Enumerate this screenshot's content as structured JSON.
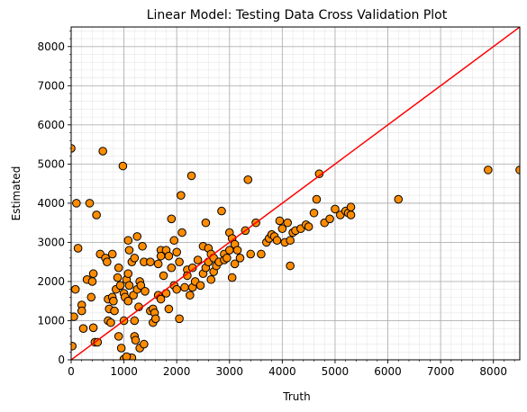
{
  "chart_data": {
    "type": "scatter",
    "title": "Linear Model: Testing Data Cross Validation Plot",
    "xlabel": "Truth",
    "ylabel": "Estimated",
    "xlim": [
      0,
      8500
    ],
    "ylim": [
      0,
      8500
    ],
    "x_ticks": [
      0,
      1000,
      2000,
      3000,
      4000,
      5000,
      6000,
      7000,
      8000
    ],
    "y_ticks": [
      0,
      1000,
      2000,
      3000,
      4000,
      5000,
      6000,
      7000,
      8000
    ],
    "x_tick_labels": [
      "0",
      "1000",
      "2000",
      "3000",
      "4000",
      "5000",
      "6000",
      "7000",
      "8000"
    ],
    "y_tick_labels": [
      "0",
      "1000",
      "2000",
      "3000",
      "4000",
      "5000",
      "6000",
      "7000",
      "8000"
    ],
    "grid": true,
    "minor_grid": true,
    "marker_color": "#ff8c00",
    "marker_edge_color": "#000000",
    "reference_line": {
      "type": "y=x",
      "color": "#ff0000"
    },
    "points": [
      [
        0,
        5400
      ],
      [
        20,
        350
      ],
      [
        50,
        1100
      ],
      [
        80,
        1800
      ],
      [
        100,
        4000
      ],
      [
        130,
        2850
      ],
      [
        200,
        1400
      ],
      [
        200,
        1250
      ],
      [
        230,
        800
      ],
      [
        300,
        2050
      ],
      [
        350,
        4000
      ],
      [
        380,
        1600
      ],
      [
        400,
        2000
      ],
      [
        420,
        2200
      ],
      [
        420,
        820
      ],
      [
        450,
        450
      ],
      [
        480,
        3700
      ],
      [
        500,
        450
      ],
      [
        550,
        2700
      ],
      [
        600,
        5330
      ],
      [
        650,
        2600
      ],
      [
        680,
        2500
      ],
      [
        700,
        1550
      ],
      [
        700,
        1000
      ],
      [
        720,
        1300
      ],
      [
        750,
        950
      ],
      [
        780,
        2700
      ],
      [
        780,
        1600
      ],
      [
        800,
        1500
      ],
      [
        820,
        1250
      ],
      [
        850,
        1800
      ],
      [
        880,
        2100
      ],
      [
        900,
        2350
      ],
      [
        900,
        600
      ],
      [
        930,
        1900
      ],
      [
        950,
        300
      ],
      [
        980,
        4950
      ],
      [
        1000,
        1700
      ],
      [
        1000,
        1000
      ],
      [
        1020,
        1600
      ],
      [
        1050,
        2050
      ],
      [
        1080,
        2200
      ],
      [
        1080,
        1500
      ],
      [
        1080,
        3050
      ],
      [
        1100,
        2800
      ],
      [
        1100,
        1900
      ],
      [
        1120,
        50
      ],
      [
        1150,
        50
      ],
      [
        1150,
        2500
      ],
      [
        1180,
        1650
      ],
      [
        1200,
        2600
      ],
      [
        1200,
        1000
      ],
      [
        1200,
        600
      ],
      [
        1220,
        500
      ],
      [
        1250,
        3150
      ],
      [
        1250,
        1800
      ],
      [
        1280,
        1350
      ],
      [
        1300,
        2000
      ],
      [
        1300,
        300
      ],
      [
        1320,
        1900
      ],
      [
        1350,
        2900
      ],
      [
        1380,
        400
      ],
      [
        1380,
        2500
      ],
      [
        1400,
        1750
      ],
      [
        1000,
        20
      ],
      [
        1050,
        80
      ],
      [
        1500,
        1250
      ],
      [
        1500,
        2500
      ],
      [
        1550,
        1300
      ],
      [
        1550,
        950
      ],
      [
        1580,
        1200
      ],
      [
        1600,
        1050
      ],
      [
        1650,
        2450
      ],
      [
        1650,
        1650
      ],
      [
        1700,
        2800
      ],
      [
        1700,
        2650
      ],
      [
        1700,
        1550
      ],
      [
        1750,
        2150
      ],
      [
        1800,
        2800
      ],
      [
        1800,
        1700
      ],
      [
        1850,
        2650
      ],
      [
        1850,
        1300
      ],
      [
        1900,
        3600
      ],
      [
        1900,
        2350
      ],
      [
        1950,
        3050
      ],
      [
        1950,
        1900
      ],
      [
        2000,
        2750
      ],
      [
        2000,
        1800
      ],
      [
        2050,
        2500
      ],
      [
        2050,
        1050
      ],
      [
        2080,
        4200
      ],
      [
        2100,
        3250
      ],
      [
        2150,
        1850
      ],
      [
        2200,
        2300
      ],
      [
        2200,
        2150
      ],
      [
        2250,
        1650
      ],
      [
        2280,
        4700
      ],
      [
        2300,
        2350
      ],
      [
        2300,
        1850
      ],
      [
        2350,
        2000
      ],
      [
        2400,
        2550
      ],
      [
        2450,
        1900
      ],
      [
        2500,
        2900
      ],
      [
        2500,
        2200
      ],
      [
        2550,
        3500
      ],
      [
        2550,
        2350
      ],
      [
        2600,
        2850
      ],
      [
        2600,
        2500
      ],
      [
        2650,
        2700
      ],
      [
        2650,
        2050
      ],
      [
        2700,
        2600
      ],
      [
        2700,
        2250
      ],
      [
        2750,
        2400
      ],
      [
        2800,
        2500
      ],
      [
        2850,
        3800
      ],
      [
        2900,
        2700
      ],
      [
        2900,
        2550
      ],
      [
        2950,
        2600
      ],
      [
        3000,
        3250
      ],
      [
        3000,
        2800
      ],
      [
        3050,
        2100
      ],
      [
        3050,
        3100
      ],
      [
        3100,
        2450
      ],
      [
        3100,
        2950
      ],
      [
        3150,
        2800
      ],
      [
        3200,
        2600
      ],
      [
        3300,
        3300
      ],
      [
        3350,
        4600
      ],
      [
        3400,
        2700
      ],
      [
        3500,
        3500
      ],
      [
        3600,
        2700
      ],
      [
        3700,
        3000
      ],
      [
        3750,
        3100
      ],
      [
        3800,
        3200
      ],
      [
        3850,
        3150
      ],
      [
        3900,
        3050
      ],
      [
        3950,
        3550
      ],
      [
        4000,
        3350
      ],
      [
        4050,
        3000
      ],
      [
        4100,
        3500
      ],
      [
        4150,
        3050
      ],
      [
        4150,
        2400
      ],
      [
        4200,
        3250
      ],
      [
        4250,
        3300
      ],
      [
        4350,
        3350
      ],
      [
        4450,
        3450
      ],
      [
        4500,
        3400
      ],
      [
        4600,
        3750
      ],
      [
        4650,
        4100
      ],
      [
        4700,
        4750
      ],
      [
        4800,
        3500
      ],
      [
        4900,
        3600
      ],
      [
        5000,
        3850
      ],
      [
        5100,
        3700
      ],
      [
        5200,
        3800
      ],
      [
        5250,
        3750
      ],
      [
        5300,
        3900
      ],
      [
        5300,
        3700
      ],
      [
        6200,
        4100
      ],
      [
        7900,
        4850
      ],
      [
        8500,
        4850
      ]
    ]
  }
}
